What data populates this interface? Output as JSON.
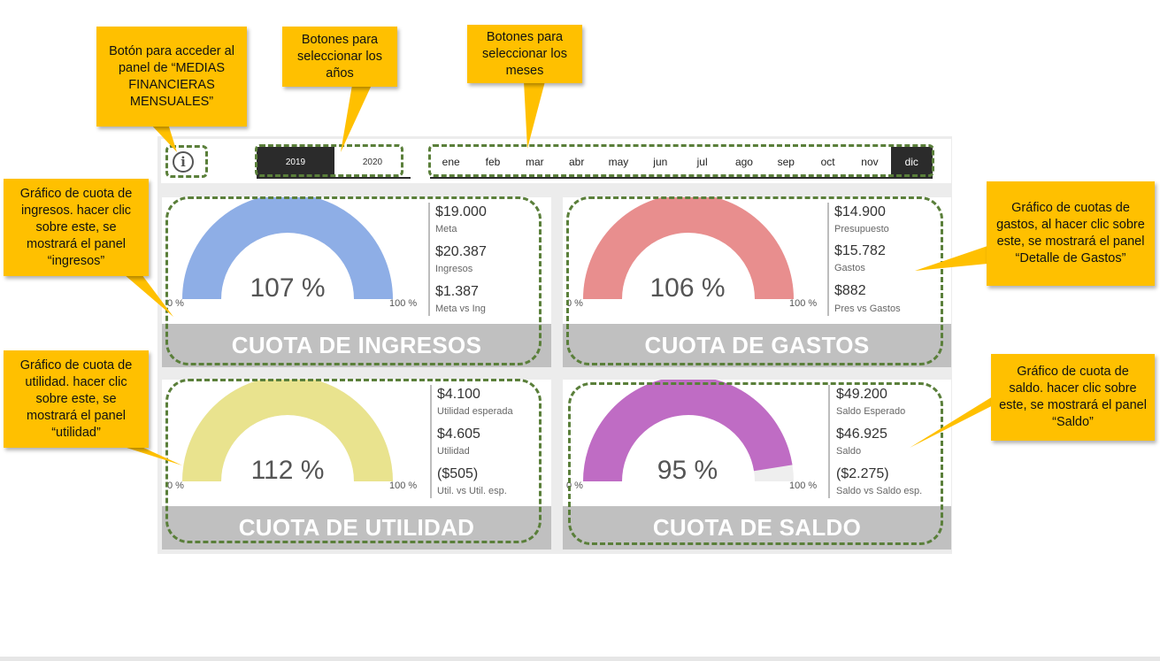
{
  "colors": {
    "dark": "#2b2b2b",
    "ingresos": "#8eaee6",
    "gastos": "#e88e8e",
    "utilidad": "#e9e38e",
    "saldo": "#bf6cc4",
    "gauge_bg": "#eeeeee",
    "footer": "#c0c0c0",
    "callout": "#ffc000",
    "dash": "#5a7f3a"
  },
  "toolbar": {
    "info_icon": "info-icon",
    "years": [
      "2019",
      "2020"
    ],
    "selected_year": "2019",
    "months": [
      "ene",
      "feb",
      "mar",
      "abr",
      "may",
      "jun",
      "jul",
      "ago",
      "sep",
      "oct",
      "nov",
      "dic"
    ],
    "selected_month": "dic"
  },
  "cards": {
    "ingresos": {
      "title": "CUOTA DE INGRESOS",
      "percent_text": "107 %",
      "gauge_fraction": 1.0,
      "min_label": "0 %",
      "max_label": "100 %",
      "kpis": [
        {
          "value": "$19.000",
          "label": "Meta"
        },
        {
          "value": "$20.387",
          "label": "Ingresos"
        },
        {
          "value": "$1.387",
          "label": "Meta vs Ing"
        }
      ]
    },
    "gastos": {
      "title": "CUOTA DE GASTOS",
      "percent_text": "106 %",
      "gauge_fraction": 1.0,
      "min_label": "0 %",
      "max_label": "100 %",
      "kpis": [
        {
          "value": "$14.900",
          "label": "Presupuesto"
        },
        {
          "value": "$15.782",
          "label": "Gastos"
        },
        {
          "value": "$882",
          "label": "Pres vs Gastos"
        }
      ]
    },
    "utilidad": {
      "title": "CUOTA DE UTILIDAD",
      "percent_text": "112 %",
      "gauge_fraction": 1.0,
      "min_label": "0 %",
      "max_label": "100 %",
      "kpis": [
        {
          "value": "$4.100",
          "label": "Utilidad esperada"
        },
        {
          "value": "$4.605",
          "label": "Utilidad"
        },
        {
          "value": "($505)",
          "label": "Util. vs Util. esp."
        }
      ]
    },
    "saldo": {
      "title": "CUOTA DE SALDO",
      "percent_text": "95 %",
      "gauge_fraction": 0.95,
      "min_label": "0 %",
      "max_label": "100 %",
      "kpis": [
        {
          "value": "$49.200",
          "label": "Saldo Esperado"
        },
        {
          "value": "$46.925",
          "label": "Saldo"
        },
        {
          "value": "($2.275)",
          "label": "Saldo vs Saldo esp."
        }
      ]
    }
  },
  "callouts": {
    "info": "Botón para acceder al panel de “MEDIAS FINANCIERAS MENSUALES”",
    "years": "Botones para seleccionar los años",
    "months": "Botones para seleccionar los meses",
    "ingresos": "Gráfico de cuota de ingresos. hacer clic sobre este, se mostrará el panel “ingresos”",
    "gastos": "Gráfico de cuotas de gastos, al hacer clic sobre este, se mostrará el panel “Detalle de Gastos”",
    "utilidad": "Gráfico de cuota de utilidad. hacer clic sobre este, se mostrará el panel “utilidad”",
    "saldo": "Gráfico de cuota de saldo. hacer clic sobre este, se mostrará el panel “Saldo”"
  }
}
